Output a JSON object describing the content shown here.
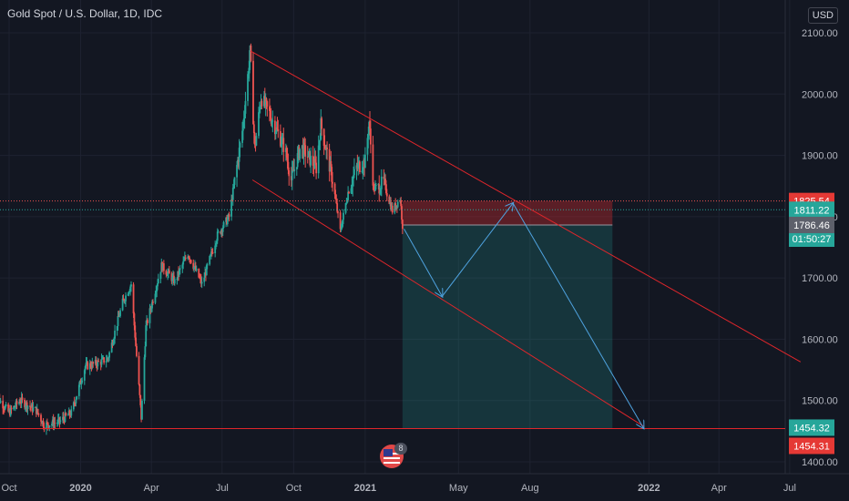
{
  "header": {
    "title": "Gold Spot / U.S. Dollar, 1D, IDC",
    "currency_label": "USD"
  },
  "events": {
    "count": "8",
    "icon": "us-flag-icon"
  },
  "colors": {
    "background": "#131722",
    "grid": "#1e2230",
    "axis_text": "#b2b5be",
    "up": "#26a69a",
    "down": "#ef5350",
    "channel": "#e0262b",
    "arrows": "#4fa3e0",
    "stop_zone": "rgba(178,40,44,0.45)",
    "target_zone": "rgba(38,166,154,0.22)",
    "badge_red": "#e53935",
    "badge_teal": "#26a69a",
    "badge_gray": "#5d606b"
  },
  "chart_data": {
    "type": "candlestick",
    "symbol": "Gold Spot / U.S. Dollar",
    "timeframe": "1D",
    "source": "IDC",
    "currency": "USD",
    "x_tick_labels": [
      "Oct",
      "2020",
      "Apr",
      "Jul",
      "Oct",
      "2021",
      "May",
      "Aug",
      "2022",
      "Apr",
      "Jul"
    ],
    "x_tick_dates": [
      "2019-10-01",
      "2020-01-01",
      "2020-04-01",
      "2020-07-01",
      "2020-10-01",
      "2021-01-01",
      "2021-05-01",
      "2021-08-01",
      "2022-01-01",
      "2022-04-01",
      "2022-07-01"
    ],
    "y_ticks": [
      1400,
      1500,
      1600,
      1700,
      1800,
      1900,
      2000,
      2100
    ],
    "y_tick_labels": [
      "1400.00",
      "1500.00",
      "1600.00",
      "1700.00",
      "1800.00",
      "1900.00",
      "2000.00",
      "2100.00"
    ],
    "x_range": [
      "2019-09-10",
      "2022-07-15"
    ],
    "y_range": [
      1384,
      2148
    ],
    "grid": true,
    "price_path": [
      [
        "2019-09-12",
        1512
      ],
      [
        "2019-10-01",
        1480
      ],
      [
        "2019-10-15",
        1500
      ],
      [
        "2019-11-05",
        1484
      ],
      [
        "2019-11-15",
        1460
      ],
      [
        "2019-12-05",
        1466
      ],
      [
        "2019-12-20",
        1480
      ],
      [
        "2020-01-07",
        1556
      ],
      [
        "2020-01-20",
        1560
      ],
      [
        "2020-02-05",
        1568
      ],
      [
        "2020-02-24",
        1660
      ],
      [
        "2020-03-06",
        1690
      ],
      [
        "2020-03-19",
        1472
      ],
      [
        "2020-03-25",
        1620
      ],
      [
        "2020-04-14",
        1720
      ],
      [
        "2020-05-01",
        1694
      ],
      [
        "2020-05-18",
        1740
      ],
      [
        "2020-06-05",
        1690
      ],
      [
        "2020-06-25",
        1770
      ],
      [
        "2020-07-10",
        1800
      ],
      [
        "2020-07-27",
        1940
      ],
      [
        "2020-08-06",
        2068
      ],
      [
        "2020-08-12",
        1911
      ],
      [
        "2020-08-20",
        1995
      ],
      [
        "2020-09-01",
        1965
      ],
      [
        "2020-09-20",
        1910
      ],
      [
        "2020-09-28",
        1860
      ],
      [
        "2020-10-10",
        1915
      ],
      [
        "2020-10-30",
        1880
      ],
      [
        "2020-11-05",
        1950
      ],
      [
        "2020-11-20",
        1860
      ],
      [
        "2020-11-30",
        1776
      ],
      [
        "2020-12-10",
        1840
      ],
      [
        "2020-12-21",
        1880
      ],
      [
        "2021-01-01",
        1890
      ],
      [
        "2021-01-06",
        1955
      ],
      [
        "2021-01-12",
        1845
      ],
      [
        "2021-01-25",
        1855
      ],
      [
        "2021-02-05",
        1810
      ],
      [
        "2021-02-15",
        1830
      ],
      [
        "2021-02-18",
        1786
      ]
    ],
    "last_price": 1786.46,
    "price_labels": [
      {
        "text": "1825.54",
        "value": 1825.54,
        "style": "red"
      },
      {
        "text": "1811.22",
        "value": 1811.22,
        "style": "teal"
      },
      {
        "text": "01:50:27",
        "value": 1797.5,
        "style": "teal",
        "note": "bar countdown"
      },
      {
        "text": "1786.46",
        "value": 1786.46,
        "style": "gray"
      },
      {
        "text": "1454.32",
        "value": 1454.32,
        "style": "teal"
      },
      {
        "text": "1454.31",
        "value": 1454.31,
        "style": "red"
      }
    ],
    "channel": {
      "upper": [
        [
          "2020-08-07",
          2070
        ],
        [
          "2022-07-15",
          1563
        ]
      ],
      "lower": [
        [
          "2020-08-09",
          1860
        ],
        [
          "2021-12-25",
          1458
        ]
      ]
    },
    "support_line": 1454.32,
    "short_position": {
      "start": "2021-02-18",
      "end": "2021-11-15",
      "entry": 1786.46,
      "stop": 1825.54,
      "target": 1454.32
    },
    "projection_path": [
      [
        "2021-02-20",
        1780
      ],
      [
        "2021-04-10",
        1670
      ],
      [
        "2021-07-10",
        1822
      ],
      [
        "2021-12-25",
        1455
      ]
    ]
  }
}
